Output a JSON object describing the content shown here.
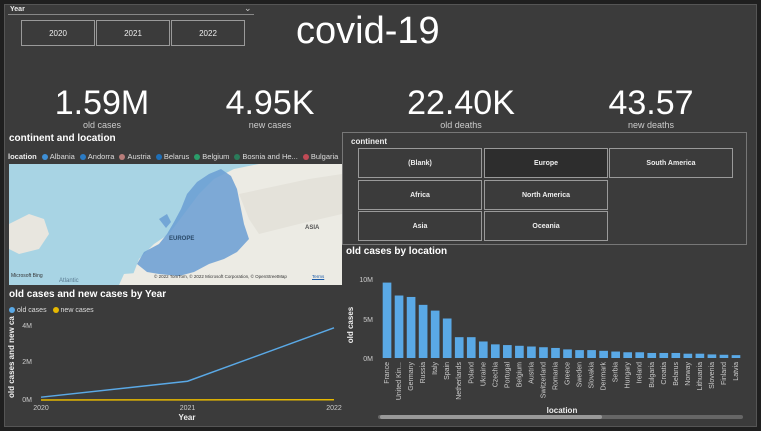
{
  "title": "covid-19",
  "year_slicer": {
    "label": "Year",
    "options": [
      "2020",
      "2021",
      "2022"
    ]
  },
  "kpis": [
    {
      "value": "1.59M",
      "label": "old cases"
    },
    {
      "value": "4.95K",
      "label": "new cases"
    },
    {
      "value": "22.40K",
      "label": "old deaths"
    },
    {
      "value": "43.57",
      "label": "new deaths"
    }
  ],
  "map_visual": {
    "title": "continent and location",
    "legend_title": "location",
    "legend": [
      {
        "name": "Albania",
        "color": "#3e8fd6"
      },
      {
        "name": "Andorra",
        "color": "#2b7bc4"
      },
      {
        "name": "Austria",
        "color": "#b87d7a"
      },
      {
        "name": "Belarus",
        "color": "#1e6fb8"
      },
      {
        "name": "Belgium",
        "color": "#2a9d6a"
      },
      {
        "name": "Bosnia and He...",
        "color": "#2a7b5a"
      },
      {
        "name": "Bulgaria",
        "color": "#c04a55"
      }
    ],
    "region_label_europe": "EUROPE",
    "region_label_asia": "ASIA",
    "ocean_label": "Atlantic",
    "brand": "Microsoft Bing",
    "copyright": "© 2022 TomTom, © 2022 Microsoft Corporation, © OpenStreetMap",
    "terms": "Terms"
  },
  "continent_slicer": {
    "label": "continent",
    "options": [
      "(Blank)",
      "Europe",
      "South America",
      "Africa",
      "North America",
      "Asia",
      "Oceania"
    ]
  },
  "line_chart": {
    "title": "old cases and new cases by Year",
    "ylabel": "old cases and new ca...",
    "xlabel": "Year",
    "yticks": [
      "4M",
      "2M",
      "0M"
    ]
  },
  "bar_chart": {
    "title": "old cases by location",
    "ylabel": "old cases",
    "xlabel": "location",
    "yticks": [
      "10M",
      "5M",
      "0M"
    ]
  },
  "chart_data": [
    {
      "type": "line",
      "title": "old cases and new cases by Year",
      "x": [
        "2020",
        "2021",
        "2022"
      ],
      "series": [
        {
          "name": "old cases",
          "color": "#5aa9e6",
          "values": [
            150000,
            1000000,
            3850000
          ]
        },
        {
          "name": "new cases",
          "color": "#e6b800",
          "values": [
            2000,
            10000,
            15000
          ]
        }
      ],
      "xlabel": "Year",
      "ylabel": "old cases and new ca...",
      "ylim": [
        0,
        4000000
      ],
      "legend_position": "top-left"
    },
    {
      "type": "bar",
      "title": "old cases by location",
      "color": "#5aa9e6",
      "categories": [
        "France",
        "United Kin...",
        "Germany",
        "Russia",
        "Italy",
        "Spain",
        "Netherlands",
        "Poland",
        "Ukraine",
        "Czechia",
        "Portugal",
        "Belgium",
        "Austria",
        "Switzerland",
        "Romania",
        "Greece",
        "Sweden",
        "Slovakia",
        "Denmark",
        "Serbia",
        "Hungary",
        "Ireland",
        "Bulgaria",
        "Croatia",
        "Belarus",
        "Norway",
        "Lithuania",
        "Slovenia",
        "Finland",
        "Latvia"
      ],
      "values": [
        10500000,
        8700000,
        8500000,
        7400000,
        6600000,
        5500000,
        2900000,
        2900000,
        2300000,
        1900000,
        1800000,
        1700000,
        1600000,
        1500000,
        1400000,
        1200000,
        1100000,
        1100000,
        1000000,
        900000,
        800000,
        800000,
        700000,
        700000,
        700000,
        600000,
        600000,
        500000,
        450000,
        400000
      ],
      "xlabel": "location",
      "ylabel": "old cases",
      "ylim": [
        0,
        11000000
      ]
    }
  ]
}
